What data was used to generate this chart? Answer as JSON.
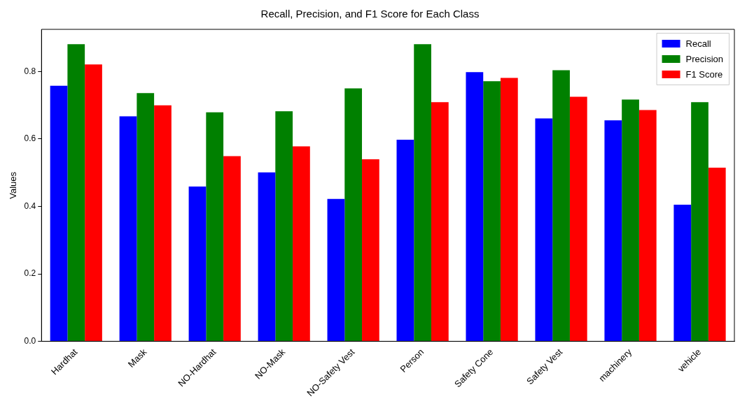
{
  "chart_data": {
    "type": "bar",
    "title": "Recall, Precision, and F1 Score for Each Class",
    "ylabel": "Values",
    "categories": [
      "Hardhat",
      "Mask",
      "NO-Hardhat",
      "NO-Mask",
      "NO-Safety Vest",
      "Person",
      "Safety Cone",
      "Safety Vest",
      "machinery",
      "vehicle"
    ],
    "series": [
      {
        "name": "Recall",
        "color": "#0000ff",
        "values": [
          0.758,
          0.667,
          0.459,
          0.501,
          0.422,
          0.598,
          0.798,
          0.661,
          0.655,
          0.405
        ]
      },
      {
        "name": "Precision",
        "color": "#008000",
        "values": [
          0.881,
          0.736,
          0.679,
          0.682,
          0.75,
          0.881,
          0.771,
          0.804,
          0.717,
          0.709
        ]
      },
      {
        "name": "F1 Score",
        "color": "#ff0000",
        "values": [
          0.821,
          0.7,
          0.549,
          0.578,
          0.54,
          0.709,
          0.781,
          0.725,
          0.686,
          0.515
        ]
      }
    ],
    "ylim": [
      0,
      0.925
    ],
    "yticks": [
      {
        "value": 0,
        "label": "0.0"
      },
      {
        "value": 0.2,
        "label": "0.2"
      },
      {
        "value": 0.4,
        "label": "0.4"
      },
      {
        "value": 0.6,
        "label": "0.6"
      },
      {
        "value": 0.8,
        "label": "0.8"
      }
    ],
    "grid": false,
    "legend": "top right"
  }
}
